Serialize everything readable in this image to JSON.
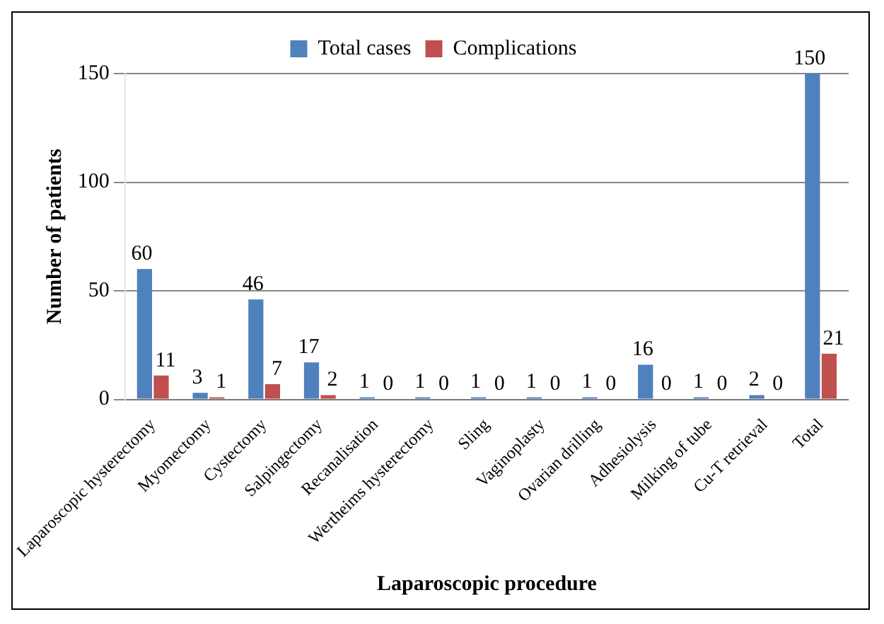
{
  "chart_data": {
    "type": "bar",
    "xlabel": "Laparoscopic procedure",
    "ylabel": "Number of patients",
    "categories": [
      "Laparoscopic hysterectomy",
      "Myomectomy",
      "Cystectomy",
      "Salpingectomy",
      "Recanalisation",
      "Wertheims hysterectomy",
      "Sling",
      "Vaginoplasty",
      "Ovarian drilling",
      "Adhesiolysis",
      "Milking of tube",
      "Cu-T retrieval",
      "Total"
    ],
    "series": [
      {
        "name": "Total cases",
        "color": "#4f81bd",
        "values": [
          60,
          3,
          46,
          17,
          1,
          1,
          1,
          1,
          1,
          16,
          1,
          2,
          150
        ]
      },
      {
        "name": "Complications",
        "color": "#c0504d",
        "values": [
          11,
          1,
          7,
          2,
          0,
          0,
          0,
          0,
          0,
          0,
          0,
          0,
          21
        ]
      }
    ],
    "ylim": [
      0,
      150
    ],
    "yticks": [
      0,
      50,
      100,
      150
    ],
    "grid": "y",
    "legend": "top",
    "data_labels": true
  }
}
